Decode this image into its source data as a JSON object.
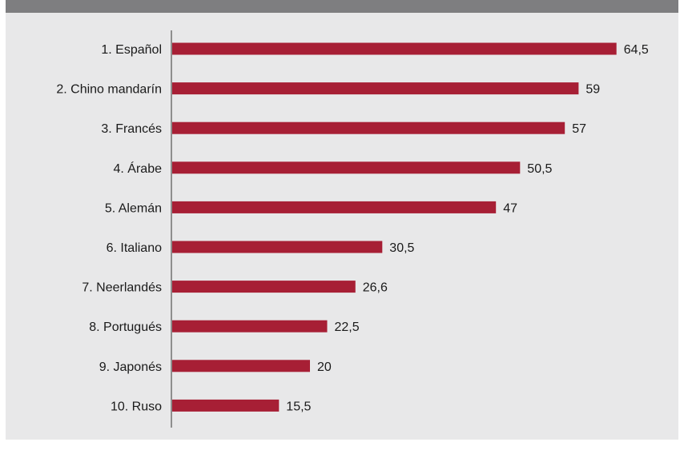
{
  "colors": {
    "bar": "#a71f35",
    "background": "#e8e8e9",
    "top_band": "#7e7e80",
    "axis": "#333333"
  },
  "chart_data": {
    "type": "bar",
    "orientation": "horizontal",
    "categories": [
      "1. Español",
      "2. Chino mandarín",
      "3. Francés",
      "4. Árabe",
      "5. Alemán",
      "6. Italiano",
      "7. Neerlandés",
      "8. Portugués",
      "9. Japonés",
      "10. Ruso"
    ],
    "values": [
      64.5,
      59,
      57,
      50.5,
      47,
      30.5,
      26.6,
      22.5,
      20,
      15.5
    ],
    "value_labels": [
      "64,5",
      "59",
      "57",
      "50,5",
      "47",
      "30,5",
      "26,6",
      "22,5",
      "20",
      "15,5"
    ],
    "xlim": [
      0,
      70
    ],
    "grid": false,
    "legend": "none"
  }
}
